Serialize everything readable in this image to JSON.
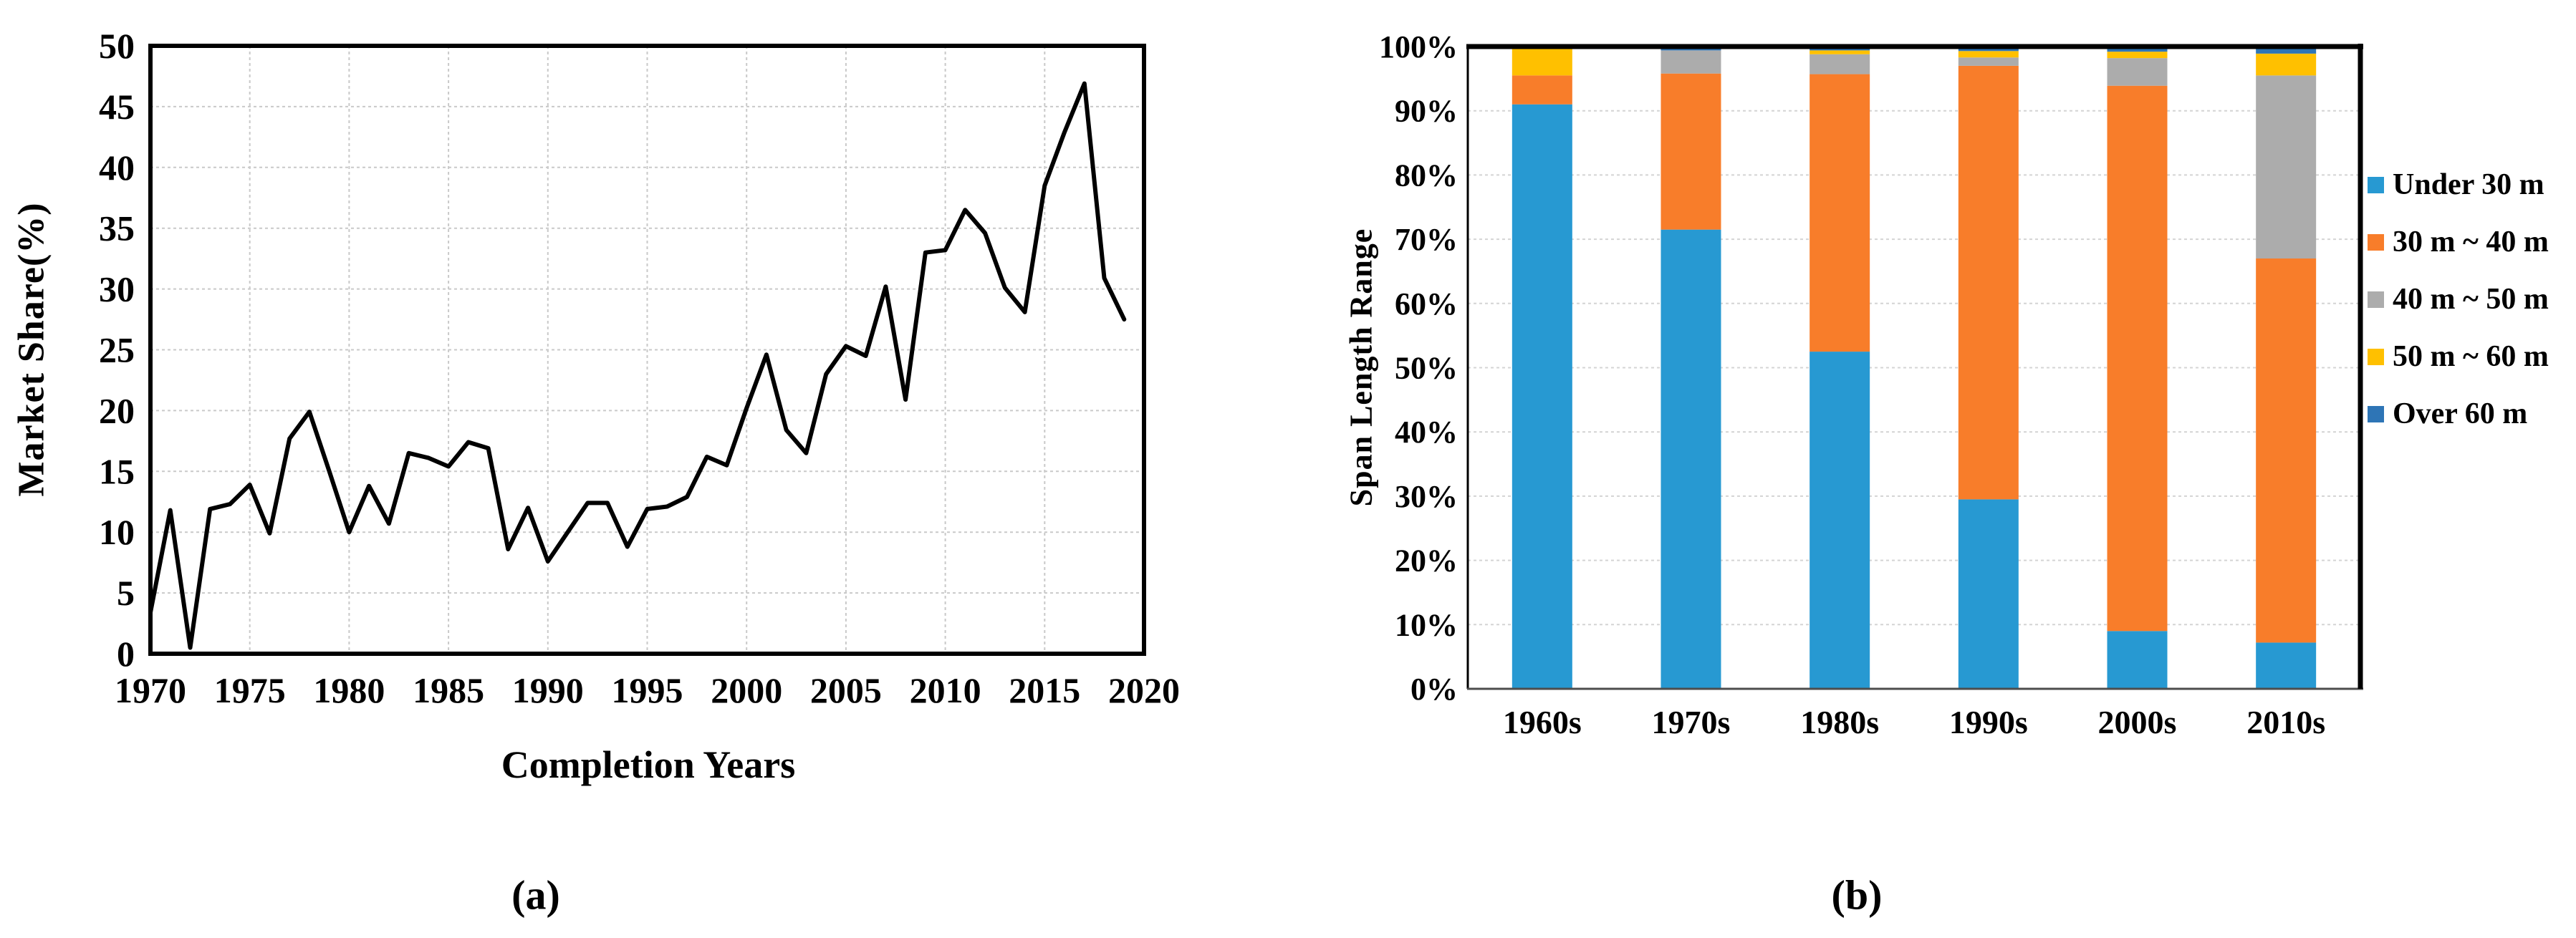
{
  "figure": {
    "caption_a": "(a)",
    "caption_b": "(b)"
  },
  "chart_data": [
    {
      "id": "market-share-line-chart",
      "type": "line",
      "title": "",
      "xlabel": "Completion Years",
      "ylabel": "Market Share(%)",
      "xlim": [
        1970,
        2020
      ],
      "ylim": [
        0,
        50
      ],
      "xticks": [
        1970,
        1975,
        1980,
        1985,
        1990,
        1995,
        2000,
        2005,
        2010,
        2015,
        2020
      ],
      "yticks": [
        0,
        5,
        10,
        15,
        20,
        25,
        30,
        35,
        40,
        45,
        50
      ],
      "grid": true,
      "line_color": "#000000",
      "x": [
        1970,
        1971,
        1972,
        1973,
        1974,
        1975,
        1976,
        1977,
        1978,
        1979,
        1980,
        1981,
        1982,
        1983,
        1984,
        1985,
        1986,
        1987,
        1988,
        1989,
        1990,
        1991,
        1992,
        1993,
        1994,
        1995,
        1996,
        1997,
        1998,
        1999,
        2000,
        2001,
        2002,
        2003,
        2004,
        2005,
        2006,
        2007,
        2008,
        2009,
        2010,
        2011,
        2012,
        2013,
        2014,
        2015,
        2016,
        2017,
        2018,
        2019
      ],
      "values": [
        3.4,
        11.8,
        0.5,
        11.9,
        12.3,
        13.9,
        9.9,
        17.7,
        19.9,
        15.0,
        10.0,
        13.8,
        10.7,
        16.5,
        16.1,
        15.4,
        17.4,
        16.9,
        8.6,
        12.0,
        7.6,
        10.0,
        12.4,
        12.4,
        8.8,
        11.9,
        12.1,
        12.9,
        16.2,
        15.5,
        20.2,
        24.6,
        18.4,
        16.5,
        23.0,
        25.3,
        24.5,
        30.2,
        20.9,
        33.0,
        33.2,
        36.5,
        34.6,
        30.1,
        28.1,
        38.5,
        42.9,
        46.9,
        30.9,
        27.5
      ]
    },
    {
      "id": "span-length-stacked-chart",
      "type": "bar",
      "subtype": "stacked-100",
      "title": "",
      "xlabel": "",
      "ylabel": "Span Length Range",
      "categories": [
        "1960s",
        "1970s",
        "1980s",
        "1990s",
        "2000s",
        "2010s"
      ],
      "ytick_labels": [
        "0%",
        "10%",
        "20%",
        "30%",
        "40%",
        "50%",
        "60%",
        "70%",
        "80%",
        "90%",
        "100%"
      ],
      "ylim": [
        0,
        100
      ],
      "grid": true,
      "legend_position": "right",
      "series": [
        {
          "name": "Under 30 m",
          "color": "#2799D2",
          "values": [
            91.0,
            71.5,
            52.5,
            29.5,
            9.0,
            7.2
          ]
        },
        {
          "name": "30 m ~ 40 m",
          "color": "#F87D2A",
          "values": [
            4.5,
            24.3,
            43.2,
            67.5,
            84.9,
            59.8
          ]
        },
        {
          "name": "40 m ~ 50 m",
          "color": "#ACACAC",
          "values": [
            0.0,
            3.6,
            3.1,
            1.3,
            4.3,
            28.5
          ]
        },
        {
          "name": "50 m ~ 60 m",
          "color": "#FFC000",
          "values": [
            4.5,
            0.0,
            0.6,
            1.0,
            1.0,
            3.4
          ]
        },
        {
          "name": "Over 60 m",
          "color": "#2E75B6",
          "values": [
            0.0,
            0.6,
            0.6,
            0.7,
            0.8,
            1.1
          ]
        }
      ]
    }
  ]
}
